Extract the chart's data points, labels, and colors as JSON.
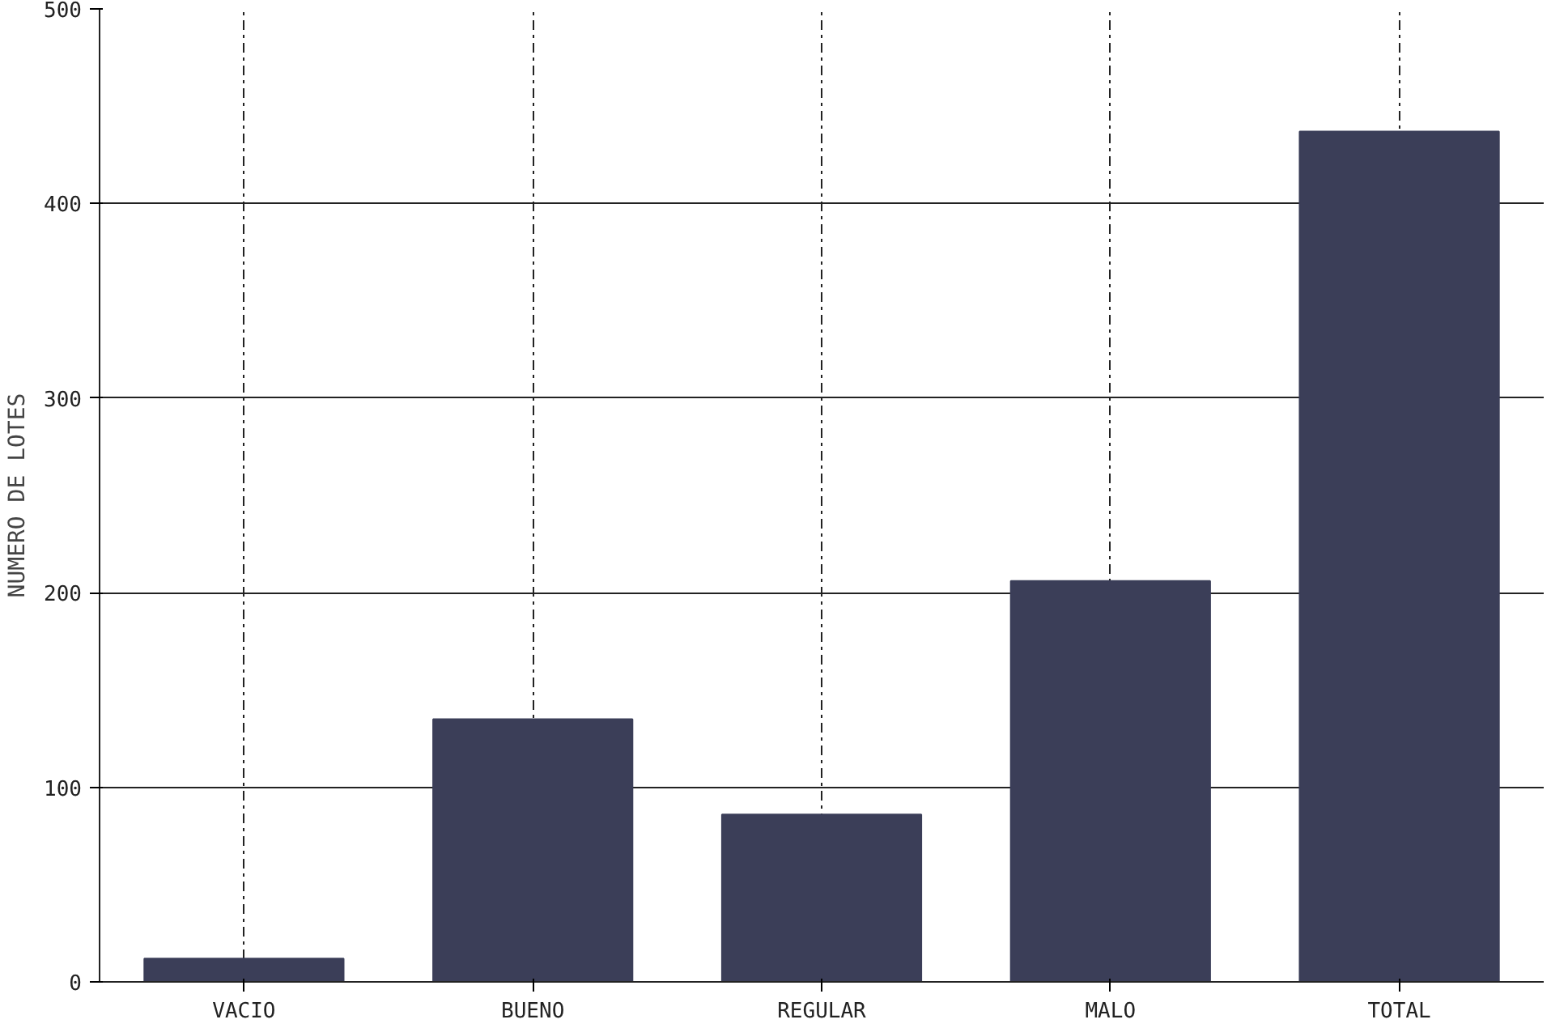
{
  "chart_data": {
    "type": "bar",
    "ylabel": "NUMERO DE LOTES",
    "categories": [
      "VACIO",
      "BUENO",
      "REGULAR",
      "MALO",
      "TOTAL"
    ],
    "values": [
      12,
      135,
      86,
      206,
      437
    ],
    "color": "#3b3e58",
    "ylim": [
      0,
      500
    ],
    "yticks": [
      0,
      100,
      200,
      300,
      400,
      500
    ],
    "grid": true
  }
}
